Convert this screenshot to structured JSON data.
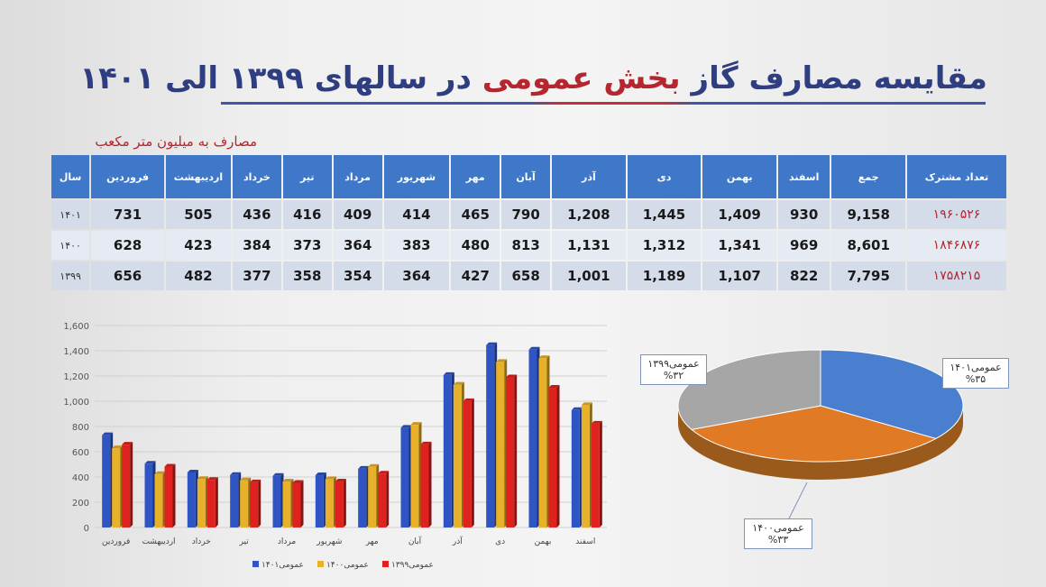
{
  "title": {
    "part1": "مقایسه مصارف گاز ",
    "part2": "بخش عمومی",
    "part3": " در سالهای ۱۳۹۹ الی ۱۴۰۱"
  },
  "unit_label": "مصارف به میلیون متر مکعب",
  "table": {
    "headers": [
      "تعداد مشترک",
      "جمع",
      "اسفند",
      "بهمن",
      "دی",
      "آذر",
      "آبان",
      "مهر",
      "شهریور",
      "مرداد",
      "تیر",
      "خرداد",
      "اردیبهشت",
      "فروردین",
      "سال"
    ],
    "rows": [
      [
        "۱۹۶۰۵۲۶",
        "9,158",
        "930",
        "1,409",
        "1,445",
        "1,208",
        "790",
        "465",
        "414",
        "409",
        "416",
        "436",
        "505",
        "731",
        "۱۴۰۱"
      ],
      [
        "۱۸۴۶۸۷۶",
        "8,601",
        "969",
        "1,341",
        "1,312",
        "1,131",
        "813",
        "480",
        "383",
        "364",
        "373",
        "384",
        "423",
        "628",
        "۱۴۰۰"
      ],
      [
        "۱۷۵۸۲۱۵",
        "7,795",
        "822",
        "1,107",
        "1,189",
        "1,001",
        "658",
        "427",
        "364",
        "354",
        "358",
        "377",
        "482",
        "656",
        "۱۳۹۹"
      ]
    ]
  },
  "chart_data": [
    {
      "type": "bar",
      "categories": [
        "فروردین",
        "اردیبهشت",
        "خرداد",
        "تیر",
        "مرداد",
        "شهریور",
        "مهر",
        "آبان",
        "آذر",
        "دی",
        "بهمن",
        "اسفند"
      ],
      "series": [
        {
          "name": "عمومی۱۴۰۱",
          "color": "#2f55c4",
          "values": [
            731,
            505,
            436,
            416,
            409,
            414,
            465,
            790,
            1208,
            1445,
            1409,
            930
          ]
        },
        {
          "name": "عمومی۱۴۰۰",
          "color": "#e8b12c",
          "values": [
            628,
            423,
            384,
            373,
            364,
            383,
            480,
            813,
            1131,
            1312,
            1341,
            969
          ]
        },
        {
          "name": "عمومی۱۳۹۹",
          "color": "#e0221e",
          "values": [
            656,
            482,
            377,
            358,
            354,
            364,
            427,
            658,
            1001,
            1189,
            1107,
            822
          ]
        }
      ],
      "ylim": [
        0,
        1600
      ],
      "yticks": [
        "0",
        "200",
        "400",
        "600",
        "800",
        "1,000",
        "1,200",
        "1,400",
        "1,600"
      ],
      "grid": true,
      "legend": "bottom"
    },
    {
      "type": "pie",
      "slices": [
        {
          "label": "عمومی۱۴۰۱",
          "value": 35,
          "value_label": "%۳۵",
          "color": "#4a7fd0"
        },
        {
          "label": "عمومی۱۴۰۰",
          "value": 33,
          "value_label": "%۳۳",
          "color": "#e07a24"
        },
        {
          "label": "عمومی۱۳۹۹",
          "value": 32,
          "value_label": "%۳۲",
          "color": "#a6a6a6"
        }
      ]
    }
  ]
}
